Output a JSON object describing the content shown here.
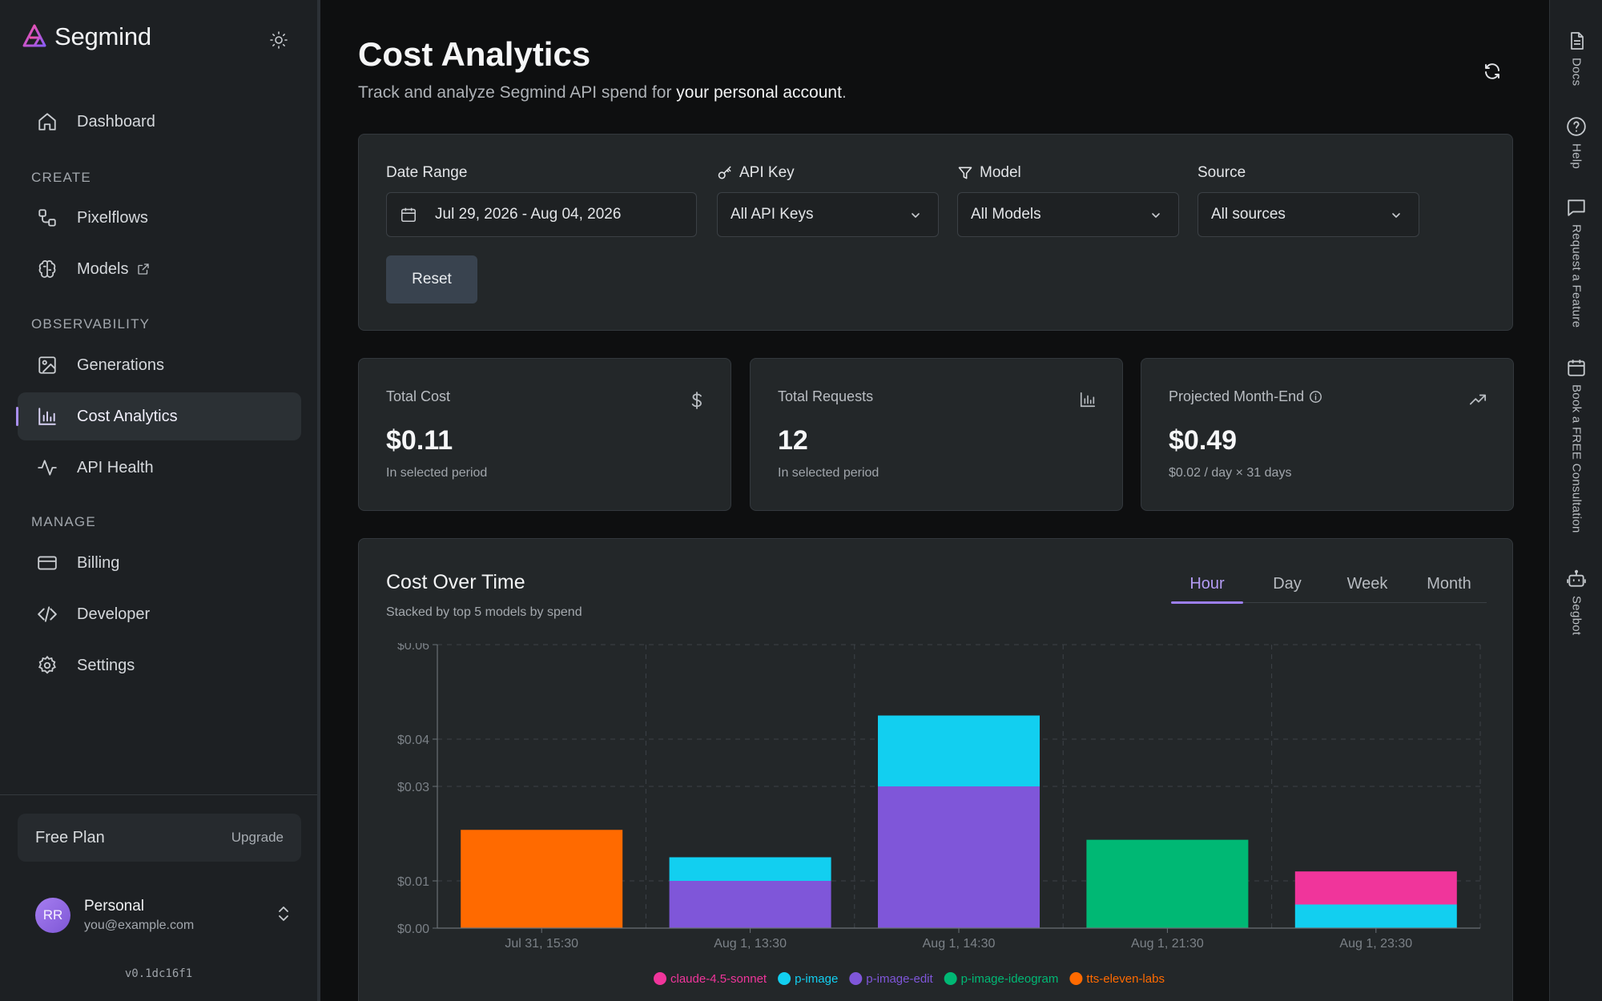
{
  "brand": {
    "name": "Segmind"
  },
  "sidebar": {
    "dashboard": "Dashboard",
    "sections": {
      "create": "CREATE",
      "observability": "OBSERVABILITY",
      "manage": "MANAGE"
    },
    "items": {
      "pixelflows": "Pixelflows",
      "models": "Models",
      "generations": "Generations",
      "cost_analytics": "Cost Analytics",
      "api_health": "API Health",
      "billing": "Billing",
      "developer": "Developer",
      "settings": "Settings"
    },
    "plan": {
      "name": "Free Plan",
      "upgrade": "Upgrade"
    },
    "account": {
      "initials": "RR",
      "name": "Personal",
      "email": "you@example.com"
    },
    "version": "v0.1dc16f1"
  },
  "header": {
    "title": "Cost Analytics",
    "subtitle_prefix": "Track and analyze Segmind API spend for",
    "subtitle_bold": "your personal account",
    "subtitle_suffix": "."
  },
  "filters": {
    "date_range": {
      "label": "Date Range",
      "value": "Jul 29, 2026 - Aug 04, 2026"
    },
    "api_key": {
      "label": "API Key",
      "value": "All API Keys"
    },
    "model": {
      "label": "Model",
      "value": "All Models"
    },
    "source": {
      "label": "Source",
      "value": "All sources"
    },
    "reset": "Reset"
  },
  "stats": {
    "total_cost": {
      "label": "Total Cost",
      "value": "$0.11",
      "note": "In selected period"
    },
    "total_requests": {
      "label": "Total Requests",
      "value": "12",
      "note": "In selected period"
    },
    "projected": {
      "label": "Projected Month-End",
      "value": "$0.49",
      "note": "$0.02 / day × 31 days"
    }
  },
  "chart_card": {
    "title": "Cost Over Time",
    "subtitle": "Stacked by top 5 models by spend",
    "tabs": [
      "Hour",
      "Day",
      "Week",
      "Month"
    ],
    "active_tab": "Hour"
  },
  "chart_data": {
    "type": "bar",
    "stacked": true,
    "categories": [
      "Jul 31, 15:30",
      "Aug 1, 13:30",
      "Aug 1, 14:30",
      "Aug 1, 21:30",
      "Aug 1, 23:30"
    ],
    "y_ticks": [
      0.0,
      0.01,
      0.03,
      0.04,
      0.06
    ],
    "y_tick_labels": [
      "$0.00",
      "$0.01",
      "$0.03",
      "$0.04",
      "$0.06"
    ],
    "ylim": [
      0,
      0.06
    ],
    "grid": true,
    "legend": "bottom",
    "series": [
      {
        "name": "claude-4.5-sonnet",
        "color": "#f0359b",
        "values": [
          0,
          0,
          0,
          0,
          0.007
        ]
      },
      {
        "name": "p-image",
        "color": "#12cff0",
        "values": [
          0,
          0.005,
          0.015,
          0,
          0.005
        ]
      },
      {
        "name": "p-image-edit",
        "color": "#7f56d9",
        "values": [
          0,
          0.01,
          0.03,
          0,
          0
        ]
      },
      {
        "name": "p-image-ideogram",
        "color": "#00b874",
        "values": [
          0,
          0,
          0,
          0.0187,
          0
        ]
      },
      {
        "name": "tts-eleven-labs",
        "color": "#ff6a00",
        "values": [
          0.0208,
          0,
          0,
          0,
          0
        ]
      }
    ],
    "stack_order": [
      "tts-eleven-labs",
      "p-image-ideogram",
      "p-image-edit",
      "p-image",
      "claude-4.5-sonnet"
    ]
  },
  "rail": {
    "docs": "Docs",
    "help": "Help",
    "feature": "Request a Feature",
    "consult": "Book a FREE Consultation",
    "segbot": "Segbot"
  }
}
